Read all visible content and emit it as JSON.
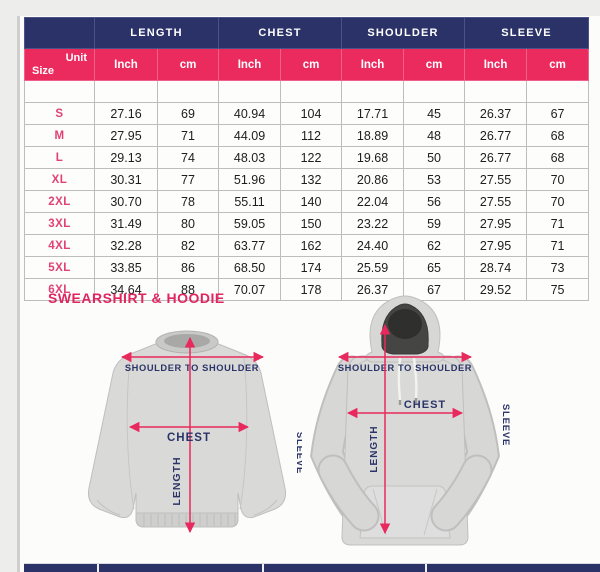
{
  "section_heading": "SWEARSHIRT & HOODIE",
  "chart_data": {
    "type": "table",
    "title": "SWEARSHIRT & HOODIE size chart",
    "column_groups": [
      "LENGTH",
      "CHEST",
      "SHOULDER",
      "SLEEVE"
    ],
    "unit_headers": [
      "Inch",
      "cm",
      "Inch",
      "cm",
      "Inch",
      "cm",
      "Inch",
      "cm"
    ],
    "corner": {
      "unit": "Unit",
      "size": "Size"
    },
    "rows": [
      [
        "S",
        "27.16",
        "69",
        "40.94",
        "104",
        "17.71",
        "45",
        "26.37",
        "67"
      ],
      [
        "M",
        "27.95",
        "71",
        "44.09",
        "112",
        "18.89",
        "48",
        "26.77",
        "68"
      ],
      [
        "L",
        "29.13",
        "74",
        "48.03",
        "122",
        "19.68",
        "50",
        "26.77",
        "68"
      ],
      [
        "XL",
        "30.31",
        "77",
        "51.96",
        "132",
        "20.86",
        "53",
        "27.55",
        "70"
      ],
      [
        "2XL",
        "30.70",
        "78",
        "55.11",
        "140",
        "22.04",
        "56",
        "27.55",
        "70"
      ],
      [
        "3XL",
        "31.49",
        "80",
        "59.05",
        "150",
        "23.22",
        "59",
        "27.95",
        "71"
      ],
      [
        "4XL",
        "32.28",
        "82",
        "63.77",
        "162",
        "24.40",
        "62",
        "27.95",
        "71"
      ],
      [
        "5XL",
        "33.85",
        "86",
        "68.50",
        "174",
        "25.59",
        "65",
        "28.74",
        "73"
      ],
      [
        "6XL",
        "34.64",
        "88",
        "70.07",
        "178",
        "26.37",
        "67",
        "29.52",
        "75"
      ]
    ]
  },
  "diagram": {
    "sweatshirt": {
      "shoulder_label": "SHOULDER TO SHOULDER",
      "chest_label": "CHEST",
      "length_label": "LENGTH",
      "sleeve_label": "SLEEVE"
    },
    "hoodie": {
      "shoulder_label": "SHOULDER TO SHOULDER",
      "chest_label": "CHEST",
      "length_label": "LENGTH",
      "sleeve_label": "SLEEVE"
    }
  },
  "colors": {
    "header_navy": "#2b3268",
    "accent_pink": "#eb2a5e",
    "size_label_pink": "#e04177",
    "heading_pink": "#e0255f",
    "measure_line_pink": "#e8295d",
    "measure_label_navy": "#2b3468",
    "garment_gray": "#d9d9d7",
    "hood_interior_dark": "#454543"
  }
}
